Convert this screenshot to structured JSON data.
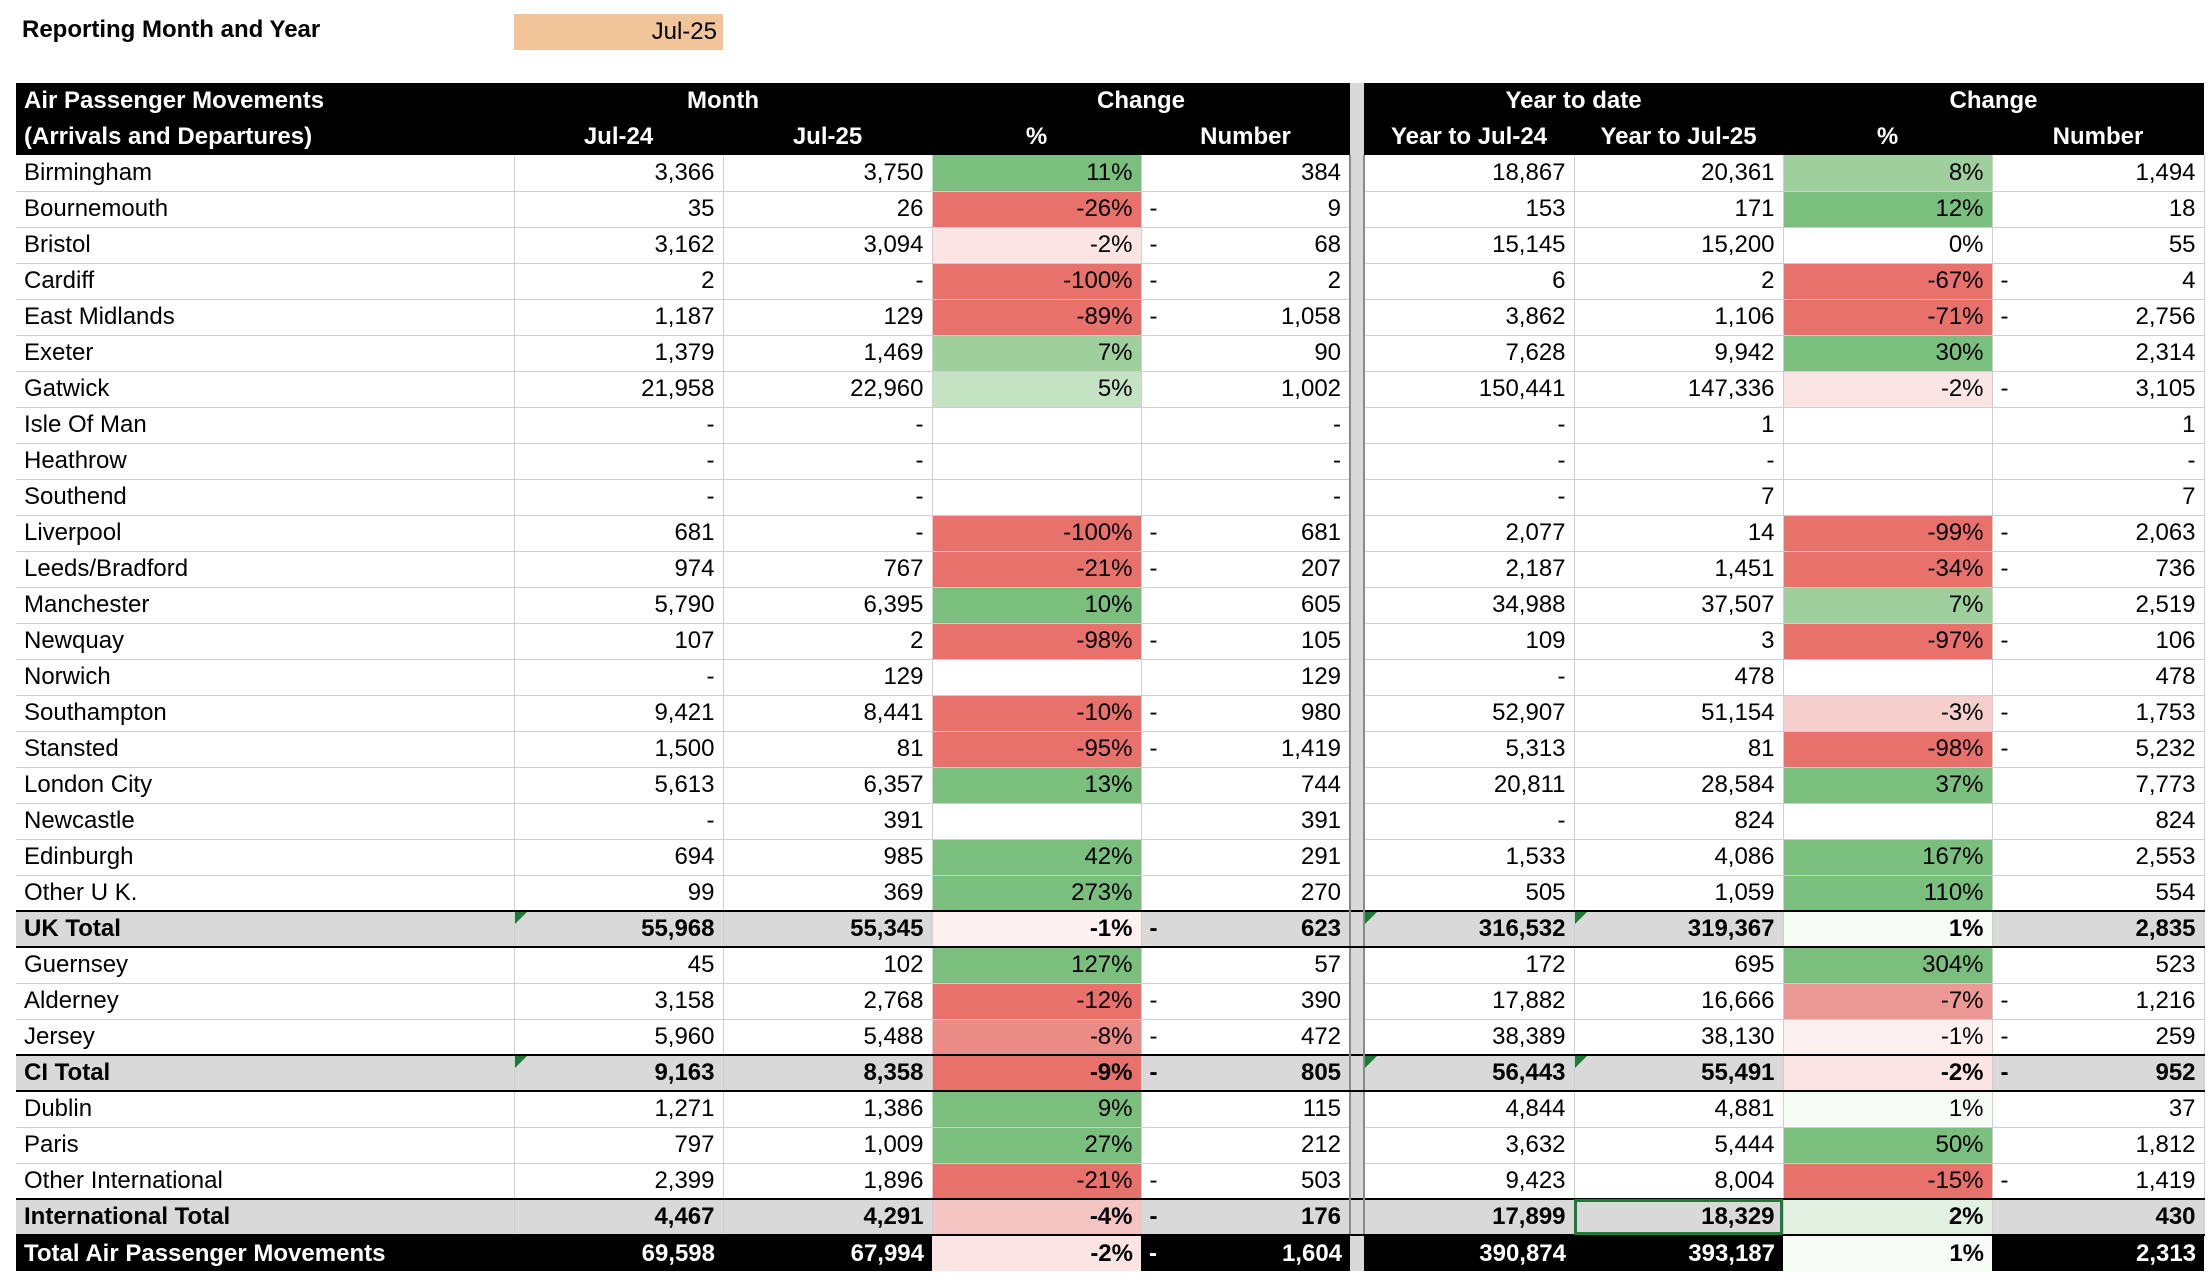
{
  "reporting": {
    "label": "Reporting Month and Year",
    "value": "Jul-25"
  },
  "header": {
    "row1": {
      "title": "Air Passenger Movements",
      "month": "Month",
      "change": "Change",
      "ytd": "Year to date",
      "change_ytd": "Change"
    },
    "row2": {
      "title": "(Arrivals and Departures)",
      "m1": "Jul-24",
      "m2": "Jul-25",
      "pct": "%",
      "num": "Number",
      "y1": "Year to Jul-24",
      "y2": "Year to Jul-25",
      "pct2": "%",
      "num2": "Number"
    }
  },
  "colors": {
    "green_strong": "#7bbf7f",
    "green_mid": "#9fcf9d",
    "green_light": "#c3e3c3",
    "green_faint": "#edf6ec",
    "red_strong": "#e8716c",
    "red_mid": "#ec9895",
    "red_light": "#f4cfcc",
    "red_faint": "#fbe5e4",
    "highlight": "#f2c49a"
  },
  "rows": [
    {
      "name": "Birmingham",
      "m1": "3,366",
      "m2": "3,750",
      "pct": "11%",
      "dash": "",
      "num": "384",
      "y1": "18,867",
      "y2": "20,361",
      "pct2": "8%",
      "dash2": "",
      "num2": "1,494",
      "c1": "#7bbf7f",
      "c2": "#9fcf9d"
    },
    {
      "name": "Bournemouth",
      "m1": "35",
      "m2": "26",
      "pct": "-26%",
      "dash": "-",
      "num": "9",
      "y1": "153",
      "y2": "171",
      "pct2": "12%",
      "dash2": "",
      "num2": "18",
      "c1": "#e8716c",
      "c2": "#7bbf7f"
    },
    {
      "name": "Bristol",
      "m1": "3,162",
      "m2": "3,094",
      "pct": "-2%",
      "dash": "-",
      "num": "68",
      "y1": "15,145",
      "y2": "15,200",
      "pct2": "0%",
      "dash2": "",
      "num2": "55",
      "c1": "#fbe5e4",
      "c2": "#ffffff"
    },
    {
      "name": "Cardiff",
      "m1": "2",
      "m2": "-",
      "pct": "-100%",
      "dash": "-",
      "num": "2",
      "y1": "6",
      "y2": "2",
      "pct2": "-67%",
      "dash2": "-",
      "num2": "4",
      "c1": "#e8716c",
      "c2": "#e8716c"
    },
    {
      "name": "East Midlands",
      "m1": "1,187",
      "m2": "129",
      "pct": "-89%",
      "dash": "-",
      "num": "1,058",
      "y1": "3,862",
      "y2": "1,106",
      "pct2": "-71%",
      "dash2": "-",
      "num2": "2,756",
      "c1": "#e8716c",
      "c2": "#e8716c"
    },
    {
      "name": "Exeter",
      "m1": "1,379",
      "m2": "1,469",
      "pct": "7%",
      "dash": "",
      "num": "90",
      "y1": "7,628",
      "y2": "9,942",
      "pct2": "30%",
      "dash2": "",
      "num2": "2,314",
      "c1": "#9fcf9d",
      "c2": "#7bbf7f"
    },
    {
      "name": "Gatwick",
      "m1": "21,958",
      "m2": "22,960",
      "pct": "5%",
      "dash": "",
      "num": "1,002",
      "y1": "150,441",
      "y2": "147,336",
      "pct2": "-2%",
      "dash2": "-",
      "num2": "3,105",
      "c1": "#c3e3c3",
      "c2": "#fbe5e4"
    },
    {
      "name": "Isle Of Man",
      "m1": "-",
      "m2": "-",
      "pct": "",
      "dash": "",
      "num": "-",
      "y1": "-",
      "y2": "1",
      "pct2": "",
      "dash2": "",
      "num2": "1",
      "c1": "#ffffff",
      "c2": "#ffffff"
    },
    {
      "name": "Heathrow",
      "m1": "-",
      "m2": "-",
      "pct": "",
      "dash": "",
      "num": "-",
      "y1": "-",
      "y2": "-",
      "pct2": "",
      "dash2": "",
      "num2": "-",
      "c1": "#ffffff",
      "c2": "#ffffff"
    },
    {
      "name": "Southend",
      "m1": "-",
      "m2": "-",
      "pct": "",
      "dash": "",
      "num": "-",
      "y1": "-",
      "y2": "7",
      "pct2": "",
      "dash2": "",
      "num2": "7",
      "c1": "#ffffff",
      "c2": "#ffffff"
    },
    {
      "name": "Liverpool",
      "m1": "681",
      "m2": "-",
      "pct": "-100%",
      "dash": "-",
      "num": "681",
      "y1": "2,077",
      "y2": "14",
      "pct2": "-99%",
      "dash2": "-",
      "num2": "2,063",
      "c1": "#e8716c",
      "c2": "#e8716c"
    },
    {
      "name": "Leeds/Bradford",
      "m1": "974",
      "m2": "767",
      "pct": "-21%",
      "dash": "-",
      "num": "207",
      "y1": "2,187",
      "y2": "1,451",
      "pct2": "-34%",
      "dash2": "-",
      "num2": "736",
      "c1": "#e8716c",
      "c2": "#e8716c"
    },
    {
      "name": "Manchester",
      "m1": "5,790",
      "m2": "6,395",
      "pct": "10%",
      "dash": "",
      "num": "605",
      "y1": "34,988",
      "y2": "37,507",
      "pct2": "7%",
      "dash2": "",
      "num2": "2,519",
      "c1": "#7bbf7f",
      "c2": "#9fcf9d"
    },
    {
      "name": "Newquay",
      "m1": "107",
      "m2": "2",
      "pct": "-98%",
      "dash": "-",
      "num": "105",
      "y1": "109",
      "y2": "3",
      "pct2": "-97%",
      "dash2": "-",
      "num2": "106",
      "c1": "#e8716c",
      "c2": "#e8716c"
    },
    {
      "name": "Norwich",
      "m1": "-",
      "m2": "129",
      "pct": "",
      "dash": "",
      "num": "129",
      "y1": "-",
      "y2": "478",
      "pct2": "",
      "dash2": "",
      "num2": "478",
      "c1": "#ffffff",
      "c2": "#ffffff"
    },
    {
      "name": "Southampton",
      "m1": "9,421",
      "m2": "8,441",
      "pct": "-10%",
      "dash": "-",
      "num": "980",
      "y1": "52,907",
      "y2": "51,154",
      "pct2": "-3%",
      "dash2": "-",
      "num2": "1,753",
      "c1": "#e8716c",
      "c2": "#f4cfcc"
    },
    {
      "name": "Stansted",
      "m1": "1,500",
      "m2": "81",
      "pct": "-95%",
      "dash": "-",
      "num": "1,419",
      "y1": "5,313",
      "y2": "81",
      "pct2": "-98%",
      "dash2": "-",
      "num2": "5,232",
      "c1": "#e8716c",
      "c2": "#e8716c"
    },
    {
      "name": "London City",
      "m1": "5,613",
      "m2": "6,357",
      "pct": "13%",
      "dash": "",
      "num": "744",
      "y1": "20,811",
      "y2": "28,584",
      "pct2": "37%",
      "dash2": "",
      "num2": "7,773",
      "c1": "#7bbf7f",
      "c2": "#7bbf7f"
    },
    {
      "name": "Newcastle",
      "m1": "-",
      "m2": "391",
      "pct": "",
      "dash": "",
      "num": "391",
      "y1": "-",
      "y2": "824",
      "pct2": "",
      "dash2": "",
      "num2": "824",
      "c1": "#ffffff",
      "c2": "#ffffff"
    },
    {
      "name": "Edinburgh",
      "m1": "694",
      "m2": "985",
      "pct": "42%",
      "dash": "",
      "num": "291",
      "y1": "1,533",
      "y2": "4,086",
      "pct2": "167%",
      "dash2": "",
      "num2": "2,553",
      "c1": "#7bbf7f",
      "c2": "#7bbf7f"
    },
    {
      "name": "Other  U K.",
      "m1": "99",
      "m2": "369",
      "pct": "273%",
      "dash": "",
      "num": "270",
      "y1": "505",
      "y2": "1,059",
      "pct2": "110%",
      "dash2": "",
      "num2": "554",
      "c1": "#7bbf7f",
      "c2": "#7bbf7f"
    },
    {
      "name": "UK Total",
      "m1": "55,968",
      "m2": "55,345",
      "pct": "-1%",
      "dash": "-",
      "num": "623",
      "y1": "316,532",
      "y2": "319,367",
      "pct2": "1%",
      "dash2": "",
      "num2": "2,835",
      "c1": "#fdf0f0",
      "c2": "#f6fbf6",
      "total": true,
      "tri": true
    },
    {
      "name": "Guernsey",
      "m1": "45",
      "m2": "102",
      "pct": "127%",
      "dash": "",
      "num": "57",
      "y1": "172",
      "y2": "695",
      "pct2": "304%",
      "dash2": "",
      "num2": "523",
      "c1": "#7bbf7f",
      "c2": "#7bbf7f"
    },
    {
      "name": "Alderney",
      "m1": "3,158",
      "m2": "2,768",
      "pct": "-12%",
      "dash": "-",
      "num": "390",
      "y1": "17,882",
      "y2": "16,666",
      "pct2": "-7%",
      "dash2": "-",
      "num2": "1,216",
      "c1": "#e8716c",
      "c2": "#ec9895"
    },
    {
      "name": "Jersey",
      "m1": "5,960",
      "m2": "5,488",
      "pct": "-8%",
      "dash": "-",
      "num": "472",
      "y1": "38,389",
      "y2": "38,130",
      "pct2": "-1%",
      "dash2": "-",
      "num2": "259",
      "c1": "#ec8c86",
      "c2": "#fdf0f0"
    },
    {
      "name": "CI Total",
      "m1": "9,163",
      "m2": "8,358",
      "pct": "-9%",
      "dash": "-",
      "num": "805",
      "y1": "56,443",
      "y2": "55,491",
      "pct2": "-2%",
      "dash2": "-",
      "num2": "952",
      "c1": "#e8716c",
      "c2": "#fbe5e4",
      "total": true,
      "tri": true
    },
    {
      "name": "Dublin",
      "m1": "1,271",
      "m2": "1,386",
      "pct": "9%",
      "dash": "",
      "num": "115",
      "y1": "4,844",
      "y2": "4,881",
      "pct2": "1%",
      "dash2": "",
      "num2": "37",
      "c1": "#7bbf7f",
      "c2": "#f6fbf6"
    },
    {
      "name": "Paris",
      "m1": "797",
      "m2": "1,009",
      "pct": "27%",
      "dash": "",
      "num": "212",
      "y1": "3,632",
      "y2": "5,444",
      "pct2": "50%",
      "dash2": "",
      "num2": "1,812",
      "c1": "#7bbf7f",
      "c2": "#7bbf7f"
    },
    {
      "name": "Other International",
      "m1": "2,399",
      "m2": "1,896",
      "pct": "-21%",
      "dash": "-",
      "num": "503",
      "y1": "9,423",
      "y2": "8,004",
      "pct2": "-15%",
      "dash2": "-",
      "num2": "1,419",
      "c1": "#e8716c",
      "c2": "#e8716c"
    },
    {
      "name": "International Total",
      "m1": "4,467",
      "m2": "4,291",
      "pct": "-4%",
      "dash": "-",
      "num": "176",
      "y1": "17,899",
      "y2": "18,329",
      "pct2": "2%",
      "dash2": "",
      "num2": "430",
      "c1": "#f4c5c3",
      "c2": "#e2f1e2",
      "total": true,
      "sel": true
    },
    {
      "name": "Total Air Passenger Movements",
      "m1": "69,598",
      "m2": "67,994",
      "pct": "-2%",
      "dash": "-",
      "num": "1,604",
      "y1": "390,874",
      "y2": "393,187",
      "pct2": "1%",
      "dash2": "",
      "num2": "2,313",
      "c1": "#fbe5e4",
      "c2": "#f6fbf6",
      "grand": true
    }
  ]
}
